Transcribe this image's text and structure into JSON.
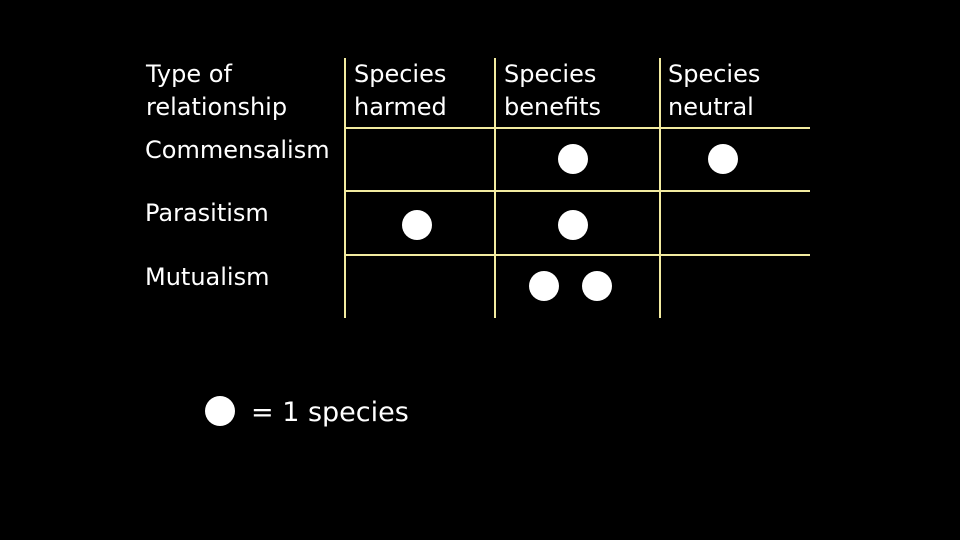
{
  "table": {
    "header": {
      "type_line1": "Type of",
      "type_line2": "relationship",
      "harmed_line1": "Species",
      "harmed_line2": "harmed",
      "benefits_line1": "Species",
      "benefits_line2": "benefits",
      "neutral_line1": "Species",
      "neutral_line2": "neutral"
    },
    "rows": [
      {
        "label": "Commensalism",
        "harmed": 0,
        "benefits": 1,
        "neutral": 1
      },
      {
        "label": "Parasitism",
        "harmed": 1,
        "benefits": 1,
        "neutral": 0
      },
      {
        "label": "Mutualism",
        "harmed": 0,
        "benefits": 2,
        "neutral": 0
      }
    ]
  },
  "legend": {
    "text": "= 1 species"
  },
  "colors": {
    "background": "#000000",
    "text": "#ffffff",
    "grid_lines": "#f2eba0",
    "dot": "#ffffff"
  }
}
